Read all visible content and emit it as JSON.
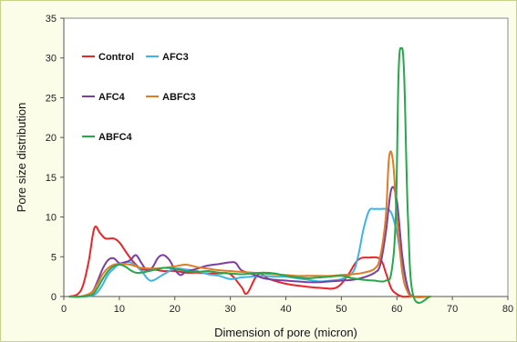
{
  "chart_data": {
    "type": "line",
    "xlabel": "Dimension of pore (micron)",
    "ylabel": "Pore size distribution",
    "xlim": [
      0,
      80
    ],
    "ylim": [
      0,
      35
    ],
    "xticks": [
      0,
      10,
      20,
      30,
      40,
      50,
      60,
      70,
      80
    ],
    "yticks": [
      0,
      5,
      10,
      15,
      20,
      25,
      30,
      35
    ],
    "grid": false,
    "legend": "inside top-left",
    "series": [
      {
        "name": "Control",
        "color": "#e8262a",
        "x": [
          1,
          2.5,
          3.5,
          4.5,
          5.5,
          6.5,
          7.5,
          9,
          10,
          11,
          12,
          13,
          14,
          16,
          18,
          20,
          22,
          24,
          26,
          28,
          30,
          32,
          33,
          35,
          37,
          40,
          43,
          46,
          49,
          51,
          53,
          55,
          57,
          58,
          59,
          60,
          61,
          62,
          63,
          66
        ],
        "y": [
          0,
          0.3,
          1.5,
          4.5,
          8.6,
          8,
          7.3,
          7.3,
          6.8,
          5.8,
          4.8,
          4,
          3.4,
          3.4,
          3.2,
          3.2,
          3,
          3,
          2.9,
          2.9,
          2.8,
          1.2,
          0.4,
          2.8,
          2.2,
          1.6,
          1.3,
          1.1,
          1.1,
          2.5,
          4.6,
          4.9,
          4.7,
          3,
          1,
          0.3,
          0,
          0,
          0,
          0
        ]
      },
      {
        "name": "AFC3",
        "color": "#3db3e6",
        "x": [
          1,
          3,
          5,
          6,
          7,
          8,
          9,
          10,
          12,
          14,
          15,
          16,
          18,
          20,
          22,
          24,
          26,
          28,
          30,
          32,
          34,
          36,
          38,
          40,
          42,
          44,
          46,
          48,
          50,
          52,
          53,
          54,
          55,
          56,
          57,
          58,
          59,
          60,
          61,
          62,
          63,
          66
        ],
        "y": [
          0,
          0,
          0.1,
          0.5,
          1.5,
          2.8,
          3.5,
          4.1,
          4.3,
          3.2,
          2.3,
          2,
          2.8,
          3.5,
          3.4,
          3.2,
          2.8,
          2.6,
          2.2,
          2.4,
          2.5,
          2.6,
          2.5,
          2.5,
          2.3,
          2.1,
          1.9,
          2,
          2.2,
          3,
          5,
          8.5,
          10.8,
          11,
          11,
          11,
          10.5,
          8,
          4,
          1,
          0,
          0
        ]
      },
      {
        "name": "AFC4",
        "color": "#7b3fa0",
        "x": [
          1,
          3,
          5,
          6,
          7,
          8,
          9,
          10,
          11,
          12,
          13,
          14,
          15,
          16,
          17,
          18,
          19,
          20,
          21,
          22,
          24,
          26,
          28,
          30,
          31,
          32,
          34,
          36,
          38,
          40,
          42,
          44,
          46,
          48,
          50,
          52,
          54,
          56,
          57,
          58,
          59,
          60,
          61,
          62,
          63,
          66
        ],
        "y": [
          0,
          0,
          0.5,
          1.8,
          3.5,
          4.6,
          4.8,
          4.2,
          4.3,
          4.6,
          5.2,
          4.2,
          3.3,
          3.7,
          4.9,
          5.2,
          4.6,
          3.4,
          2.7,
          3.1,
          3.5,
          3.9,
          4.1,
          4.3,
          4.2,
          3.3,
          2.8,
          2.3,
          2.1,
          2,
          1.9,
          1.8,
          1.8,
          1.9,
          2,
          2.1,
          2.4,
          3,
          4,
          8,
          13.5,
          12,
          5,
          1,
          0,
          0
        ]
      },
      {
        "name": "ABFC3",
        "color": "#e07b24",
        "x": [
          1,
          3,
          5,
          6,
          7,
          8,
          9,
          10,
          11,
          12,
          13,
          14,
          16,
          18,
          20,
          22,
          24,
          26,
          28,
          30,
          32,
          34,
          36,
          38,
          40,
          42,
          44,
          46,
          48,
          50,
          52,
          54,
          56,
          57,
          58,
          58.6,
          59.3,
          60,
          61,
          62,
          63,
          66
        ],
        "y": [
          0,
          0,
          0.5,
          1.5,
          2.8,
          3.6,
          4,
          4.1,
          4.1,
          4,
          3.8,
          3.6,
          3.5,
          3.6,
          3.8,
          4,
          3.7,
          3.5,
          3.3,
          3.2,
          3.1,
          3,
          2.9,
          2.8,
          2.7,
          2.6,
          2.6,
          2.6,
          2.6,
          2.7,
          2.8,
          3,
          3.5,
          5,
          10,
          17.5,
          17,
          10,
          3,
          0.5,
          0,
          0
        ]
      },
      {
        "name": "ABFC4",
        "color": "#27a64a",
        "x": [
          1,
          3,
          5,
          6,
          7,
          8,
          9,
          10,
          11,
          12,
          13,
          14,
          16,
          18,
          20,
          22,
          24,
          26,
          28,
          30,
          32,
          34,
          36,
          38,
          40,
          42,
          44,
          46,
          48,
          50,
          52,
          54,
          56,
          57,
          58,
          59,
          59.8,
          60.3,
          60.8,
          61.3,
          62,
          63,
          66
        ],
        "y": [
          0,
          0,
          0.2,
          1,
          2.2,
          3.2,
          3.8,
          4,
          3.8,
          3.3,
          3,
          3,
          3.3,
          3.6,
          3.5,
          3.2,
          3.1,
          3.2,
          3,
          2.9,
          2.8,
          2.9,
          3,
          2.9,
          2.6,
          2.4,
          2.3,
          2.4,
          2.5,
          2.6,
          2.3,
          2.1,
          2,
          1.9,
          2,
          3,
          10,
          28,
          31.2,
          28,
          10,
          0,
          0
        ]
      }
    ]
  }
}
